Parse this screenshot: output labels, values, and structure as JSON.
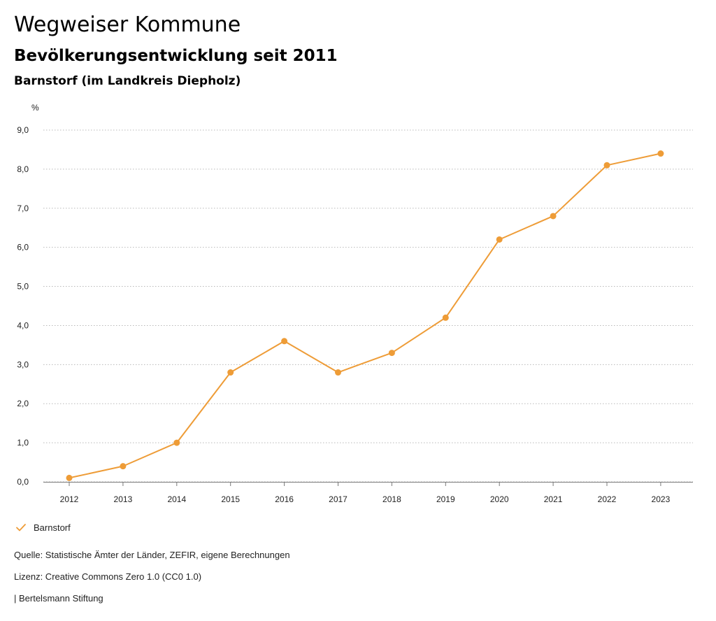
{
  "header": {
    "title": "Wegweiser Kommune",
    "subtitle": "Bevölkerungsentwicklung seit 2011",
    "region": "Barnstorf (im Landkreis Diepholz)"
  },
  "chart_data": {
    "type": "line",
    "title": "Bevölkerungsentwicklung seit 2011",
    "subtitle": "Barnstorf (im Landkreis Diepholz)",
    "xlabel": "",
    "ylabel": "%",
    "categories": [
      "2012",
      "2013",
      "2014",
      "2015",
      "2016",
      "2017",
      "2018",
      "2019",
      "2020",
      "2021",
      "2022",
      "2023"
    ],
    "series": [
      {
        "name": "Barnstorf",
        "color": "#ee9c37",
        "values": [
          0.1,
          0.4,
          1.0,
          2.8,
          3.6,
          2.8,
          3.3,
          4.2,
          6.2,
          6.8,
          8.1,
          8.4
        ]
      }
    ],
    "ylim": [
      0,
      9
    ],
    "yticks": [
      0,
      1,
      2,
      3,
      4,
      5,
      6,
      7,
      8,
      9
    ],
    "ytick_labels": [
      "0,0",
      "1,0",
      "2,0",
      "3,0",
      "4,0",
      "5,0",
      "6,0",
      "7,0",
      "8,0",
      "9,0"
    ],
    "grid": true,
    "legend_position": "bottom-left"
  },
  "legend": {
    "items": [
      {
        "label": "Barnstorf",
        "color": "#ee9c37",
        "icon": "checkmark-icon"
      }
    ]
  },
  "footer": {
    "source": "Quelle: Statistische Ämter der Länder, ZEFIR, eigene Berechnungen",
    "license": "Lizenz: Creative Commons Zero 1.0 (CC0 1.0)",
    "brand": "| Bertelsmann Stiftung"
  }
}
